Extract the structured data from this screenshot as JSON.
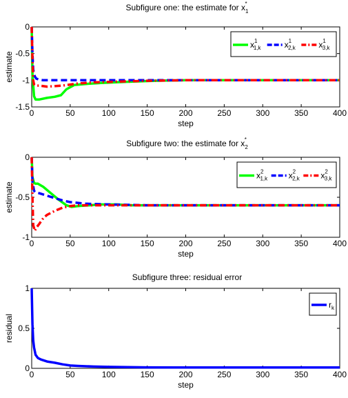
{
  "chart_data": [
    {
      "type": "line",
      "title": "Subfigure one: the estimate for x",
      "title_symbol": {
        "sup": "*",
        "sub": "1"
      },
      "xlabel": "step",
      "ylabel": "estimate",
      "xlim": [
        0,
        400
      ],
      "ylim": [
        -1.5,
        0
      ],
      "xticks": [
        0,
        50,
        100,
        150,
        200,
        250,
        300,
        350,
        400
      ],
      "yticks": [
        -1.5,
        -1,
        -0.5,
        0
      ],
      "ytick_labels": [
        "-1.5",
        "-1",
        "-0.5",
        "0"
      ],
      "legend_position": "top-right",
      "series": [
        {
          "name": "x",
          "sup": "1",
          "sub": "1,k",
          "color": "#00ff00",
          "dash": "solid",
          "x": [
            0,
            1,
            3,
            5,
            10,
            20,
            30,
            38,
            45,
            55,
            70,
            90,
            120,
            160,
            200,
            400
          ],
          "y": [
            0,
            -0.9,
            -1.3,
            -1.36,
            -1.36,
            -1.33,
            -1.31,
            -1.28,
            -1.17,
            -1.09,
            -1.07,
            -1.05,
            -1.03,
            -1.01,
            -1.0,
            -1.0
          ]
        },
        {
          "name": "x",
          "sup": "1",
          "sub": "2,k",
          "color": "#0000ff",
          "dash": "dash",
          "x": [
            0,
            1,
            2,
            4,
            6,
            10,
            15,
            30,
            60,
            100,
            400
          ],
          "y": [
            0,
            -0.5,
            -0.8,
            -0.93,
            -0.97,
            -0.99,
            -1.0,
            -1.0,
            -1.0,
            -1.0,
            -1.0
          ]
        },
        {
          "name": "x",
          "sup": "1",
          "sub": "3,k",
          "color": "#ff0000",
          "dash": "dashdot",
          "x": [
            0,
            1,
            2,
            3,
            5,
            10,
            20,
            40,
            60,
            80,
            100,
            150,
            200,
            400
          ],
          "y": [
            0,
            -0.6,
            -1.0,
            -1.08,
            -1.1,
            -1.1,
            -1.12,
            -1.1,
            -1.06,
            -1.04,
            -1.03,
            -1.01,
            -1.0,
            -1.0
          ]
        }
      ]
    },
    {
      "type": "line",
      "title": "Subfigure two: the estimate for x",
      "title_symbol": {
        "sup": "*",
        "sub": "2"
      },
      "xlabel": "step",
      "ylabel": "estimate",
      "xlim": [
        0,
        400
      ],
      "ylim": [
        -1,
        0
      ],
      "xticks": [
        0,
        50,
        100,
        150,
        200,
        250,
        300,
        350,
        400
      ],
      "yticks": [
        -1,
        -0.5,
        0
      ],
      "ytick_labels": [
        "-1",
        "-0.5",
        "0"
      ],
      "legend_position": "top-right",
      "series": [
        {
          "name": "x",
          "sup": "2",
          "sub": "1,k",
          "color": "#00ff00",
          "dash": "solid",
          "x": [
            0,
            1,
            3,
            5,
            8,
            15,
            25,
            35,
            45,
            52,
            60,
            75,
            90,
            110,
            130,
            160,
            200,
            400
          ],
          "y": [
            0,
            -0.25,
            -0.32,
            -0.33,
            -0.33,
            -0.37,
            -0.45,
            -0.53,
            -0.6,
            -0.62,
            -0.61,
            -0.6,
            -0.59,
            -0.59,
            -0.6,
            -0.6,
            -0.6,
            -0.6
          ]
        },
        {
          "name": "x",
          "sup": "2",
          "sub": "2,k",
          "color": "#0000ff",
          "dash": "dash",
          "x": [
            0,
            1,
            3,
            5,
            10,
            20,
            30,
            40,
            50,
            70,
            100,
            150,
            400
          ],
          "y": [
            0,
            -0.3,
            -0.42,
            -0.44,
            -0.45,
            -0.48,
            -0.51,
            -0.54,
            -0.56,
            -0.58,
            -0.59,
            -0.6,
            -0.6
          ]
        },
        {
          "name": "x",
          "sup": "2",
          "sub": "3,k",
          "color": "#ff0000",
          "dash": "dashdot",
          "x": [
            0,
            1,
            2,
            4,
            6,
            10,
            15,
            20,
            30,
            40,
            50,
            60,
            80,
            100,
            150,
            400
          ],
          "y": [
            0,
            -0.5,
            -0.85,
            -0.92,
            -0.88,
            -0.83,
            -0.76,
            -0.72,
            -0.67,
            -0.63,
            -0.61,
            -0.6,
            -0.6,
            -0.6,
            -0.6,
            -0.6
          ]
        }
      ]
    },
    {
      "type": "line",
      "title": "Subfigure three: residual error",
      "xlabel": "step",
      "ylabel": "residual",
      "xlim": [
        0,
        400
      ],
      "ylim": [
        0,
        1
      ],
      "xticks": [
        0,
        50,
        100,
        150,
        200,
        250,
        300,
        350,
        400
      ],
      "yticks": [
        0,
        0.5,
        1
      ],
      "ytick_labels": [
        "0",
        "0.5",
        "1"
      ],
      "legend_position": "top-right",
      "series": [
        {
          "name": "r",
          "sub": "k",
          "color": "#0000ff",
          "dash": "solid",
          "x": [
            0,
            1,
            2,
            3,
            5,
            8,
            12,
            20,
            30,
            40,
            50,
            60,
            80,
            100,
            150,
            200,
            400
          ],
          "y": [
            1,
            0.55,
            0.35,
            0.26,
            0.17,
            0.13,
            0.11,
            0.085,
            0.07,
            0.05,
            0.035,
            0.03,
            0.022,
            0.018,
            0.012,
            0.01,
            0.01
          ]
        }
      ]
    }
  ]
}
